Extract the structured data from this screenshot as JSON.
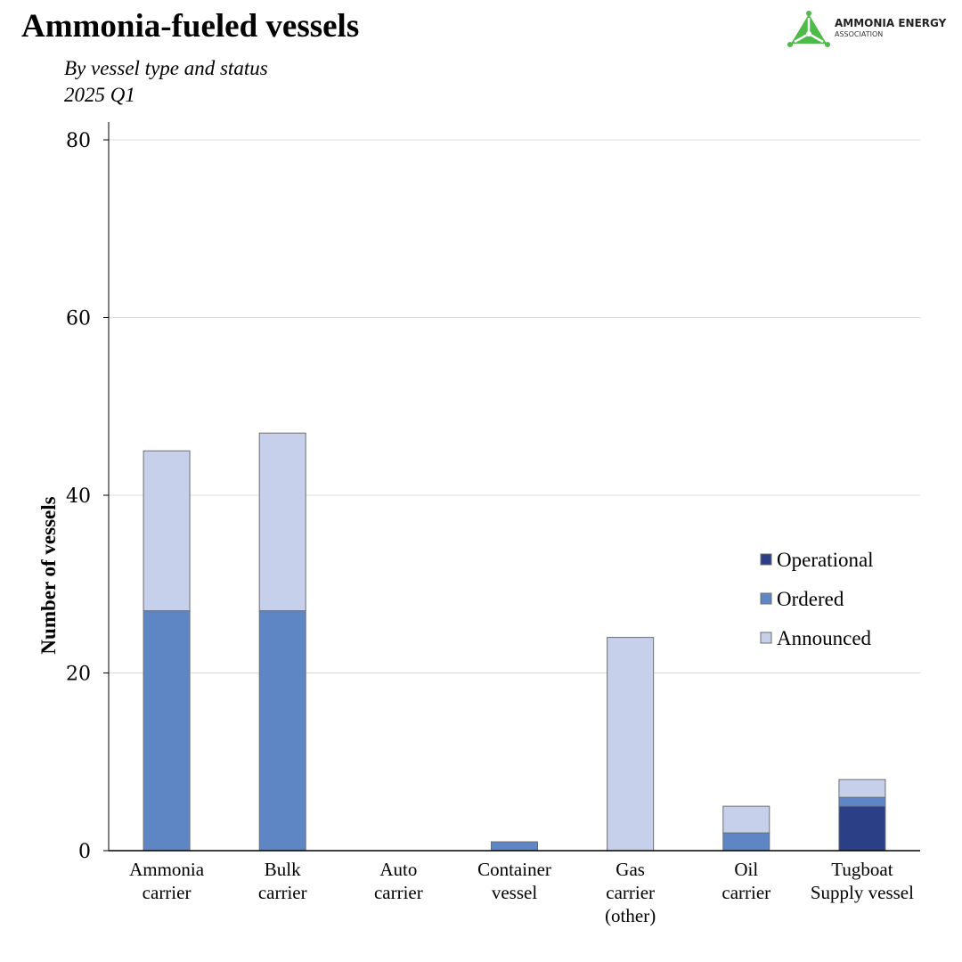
{
  "header": {
    "title": "Ammonia-fueled vessels",
    "subtitle": "By vessel type and status",
    "period": "2025 Q1"
  },
  "logo": {
    "line1": "AMMONIA ENERGY",
    "line2": "ASSOCIATION",
    "color": "#4cbb47"
  },
  "chart_data": {
    "type": "bar",
    "stacked": true,
    "title": "Ammonia-fueled vessels",
    "ylabel": "Number of vessels",
    "xlabel": "",
    "ylim": [
      0,
      80
    ],
    "yticks": [
      0,
      20,
      40,
      60,
      80
    ],
    "grid": true,
    "legend_position": "right",
    "categories": [
      [
        "Ammonia",
        "carrier"
      ],
      [
        "Bulk",
        "carrier"
      ],
      [
        "Auto",
        "carrier"
      ],
      [
        "Container",
        "vessel"
      ],
      [
        "Gas",
        "carrier",
        "(other)"
      ],
      [
        "Oil",
        "carrier"
      ],
      [
        "Tugboat",
        "Supply vessel"
      ]
    ],
    "series": [
      {
        "name": "Operational",
        "color": "#2a3f86",
        "values": [
          0,
          0,
          0,
          0,
          0,
          0,
          5
        ]
      },
      {
        "name": "Ordered",
        "color": "#5e86c5",
        "values": [
          27,
          27,
          0,
          1,
          0,
          2,
          1
        ]
      },
      {
        "name": "Announced",
        "color": "#c6d0eb",
        "values": [
          18,
          20,
          0,
          0,
          24,
          3,
          2
        ]
      }
    ]
  }
}
